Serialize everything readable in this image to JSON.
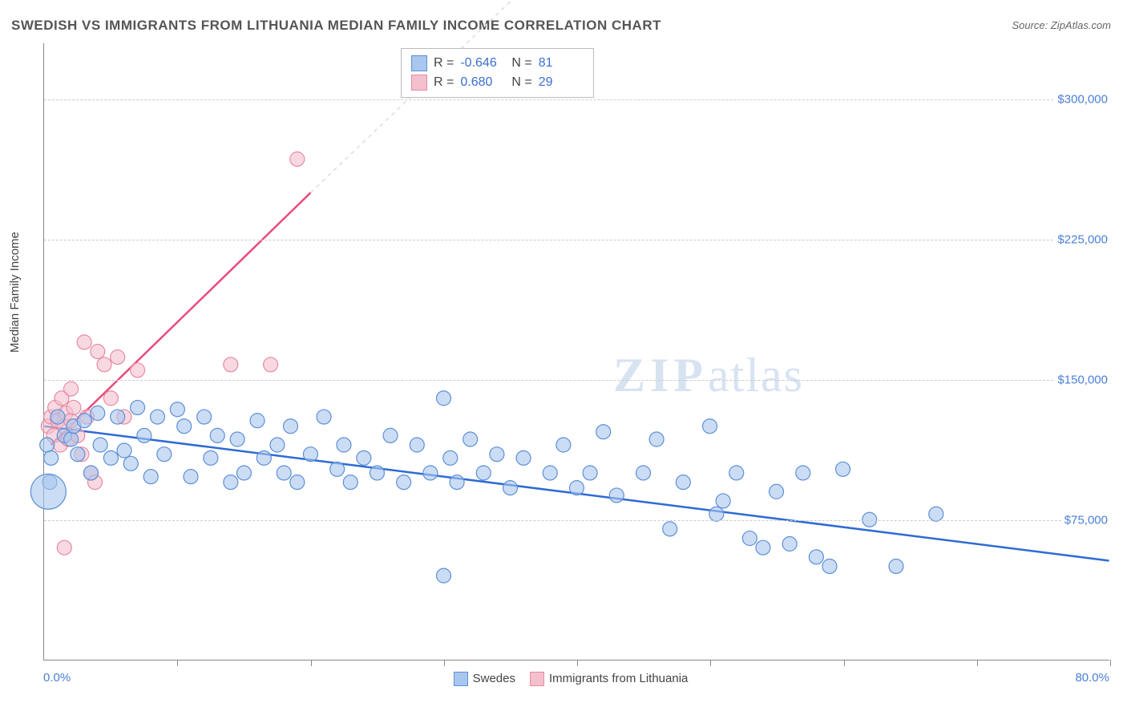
{
  "title": "SWEDISH VS IMMIGRANTS FROM LITHUANIA MEDIAN FAMILY INCOME CORRELATION CHART",
  "source": "Source: ZipAtlas.com",
  "ylabel": "Median Family Income",
  "watermark_zip": "ZIP",
  "watermark_rest": "atlas",
  "chart": {
    "type": "scatter",
    "background_color": "#ffffff",
    "grid_color": "#cccccc",
    "grid_dash": "4,4",
    "axis_color": "#888888",
    "xlim": [
      0,
      80
    ],
    "ylim": [
      0,
      330000
    ],
    "ytick_values": [
      75000,
      150000,
      225000,
      300000
    ],
    "ytick_labels": [
      "$75,000",
      "$150,000",
      "$225,000",
      "$300,000"
    ],
    "xtick_values": [
      10,
      20,
      30,
      40,
      50,
      60,
      70,
      80
    ],
    "x_min_label": "0.0%",
    "x_max_label": "80.0%",
    "tick_label_color": "#4a7fd8",
    "tick_label_fontsize": 15,
    "ylabel_fontsize": 15,
    "title_fontsize": 17,
    "title_color": "#555555"
  },
  "series": {
    "swedes": {
      "label": "Swedes",
      "fill_color": "#a9c7ee",
      "stroke_color": "#5d8fd6",
      "marker_radius": 9,
      "fill_opacity": 0.6,
      "trendline_color": "#2e6bd4",
      "trendline_width": 2.5,
      "trend_x1": 0,
      "trend_y1": 125000,
      "trend_x2": 80,
      "trend_y2": 53000,
      "R": "-0.646",
      "N": "81",
      "points": [
        [
          0.2,
          115000
        ],
        [
          0.4,
          95000
        ],
        [
          0.5,
          108000
        ],
        [
          1.0,
          130000
        ],
        [
          1.5,
          120000
        ],
        [
          2.0,
          118000
        ],
        [
          2.2,
          125000
        ],
        [
          2.5,
          110000
        ],
        [
          3.0,
          128000
        ],
        [
          3.5,
          100000
        ],
        [
          4.0,
          132000
        ],
        [
          4.2,
          115000
        ],
        [
          5.0,
          108000
        ],
        [
          5.5,
          130000
        ],
        [
          6.0,
          112000
        ],
        [
          6.5,
          105000
        ],
        [
          7.0,
          135000
        ],
        [
          7.5,
          120000
        ],
        [
          8.0,
          98000
        ],
        [
          8.5,
          130000
        ],
        [
          9.0,
          110000
        ],
        [
          10.0,
          134000
        ],
        [
          10.5,
          125000
        ],
        [
          11.0,
          98000
        ],
        [
          12.0,
          130000
        ],
        [
          12.5,
          108000
        ],
        [
          13.0,
          120000
        ],
        [
          14.0,
          95000
        ],
        [
          14.5,
          118000
        ],
        [
          15.0,
          100000
        ],
        [
          16.0,
          128000
        ],
        [
          16.5,
          108000
        ],
        [
          17.5,
          115000
        ],
        [
          18.0,
          100000
        ],
        [
          18.5,
          125000
        ],
        [
          19.0,
          95000
        ],
        [
          20.0,
          110000
        ],
        [
          21.0,
          130000
        ],
        [
          22.0,
          102000
        ],
        [
          22.5,
          115000
        ],
        [
          23.0,
          95000
        ],
        [
          24.0,
          108000
        ],
        [
          25.0,
          100000
        ],
        [
          26.0,
          120000
        ],
        [
          27.0,
          95000
        ],
        [
          28.0,
          115000
        ],
        [
          29.0,
          100000
        ],
        [
          30.0,
          140000
        ],
        [
          30.5,
          108000
        ],
        [
          30.0,
          45000
        ],
        [
          31.0,
          95000
        ],
        [
          32.0,
          118000
        ],
        [
          33.0,
          100000
        ],
        [
          34.0,
          110000
        ],
        [
          35.0,
          92000
        ],
        [
          36.0,
          108000
        ],
        [
          38.0,
          100000
        ],
        [
          39.0,
          115000
        ],
        [
          40.0,
          92000
        ],
        [
          41.0,
          100000
        ],
        [
          42.0,
          122000
        ],
        [
          43.0,
          88000
        ],
        [
          45.0,
          100000
        ],
        [
          46.0,
          118000
        ],
        [
          47.0,
          70000
        ],
        [
          48.0,
          95000
        ],
        [
          50.0,
          125000
        ],
        [
          51.0,
          85000
        ],
        [
          52.0,
          100000
        ],
        [
          53.0,
          65000
        ],
        [
          54.0,
          60000
        ],
        [
          55.0,
          90000
        ],
        [
          56.0,
          62000
        ],
        [
          57.0,
          100000
        ],
        [
          60.0,
          102000
        ],
        [
          62.0,
          75000
        ],
        [
          64.0,
          50000
        ],
        [
          67.0,
          78000
        ],
        [
          58.0,
          55000
        ],
        [
          59.0,
          50000
        ],
        [
          50.5,
          78000
        ]
      ],
      "big_point": {
        "x": 0.3,
        "y": 90000,
        "r": 22
      }
    },
    "lithuania": {
      "label": "Immigrants from Lithuania",
      "fill_color": "#f4c0cd",
      "stroke_color": "#e88aa3",
      "marker_radius": 9,
      "fill_opacity": 0.6,
      "trendline_color": "#e94b7c",
      "trendline_width": 2.5,
      "trendline_dash_color": "#ddd",
      "trend_x1": 0.5,
      "trend_y1": 115000,
      "trend_x2": 20,
      "trend_y2": 250000,
      "trend_dash_x2": 42,
      "trend_dash_y2": 400000,
      "R": "0.680",
      "N": "29",
      "points": [
        [
          0.3,
          125000
        ],
        [
          0.5,
          130000
        ],
        [
          0.7,
          120000
        ],
        [
          0.8,
          135000
        ],
        [
          1.0,
          128000
        ],
        [
          1.2,
          115000
        ],
        [
          1.3,
          140000
        ],
        [
          1.5,
          125000
        ],
        [
          1.6,
          132000
        ],
        [
          1.8,
          118000
        ],
        [
          2.0,
          145000
        ],
        [
          2.0,
          128000
        ],
        [
          2.2,
          135000
        ],
        [
          2.5,
          120000
        ],
        [
          2.8,
          110000
        ],
        [
          3.0,
          170000
        ],
        [
          3.2,
          130000
        ],
        [
          3.5,
          100000
        ],
        [
          3.8,
          95000
        ],
        [
          4.0,
          165000
        ],
        [
          4.5,
          158000
        ],
        [
          5.0,
          140000
        ],
        [
          5.5,
          162000
        ],
        [
          6.0,
          130000
        ],
        [
          7.0,
          155000
        ],
        [
          14.0,
          158000
        ],
        [
          17.0,
          158000
        ],
        [
          1.5,
          60000
        ],
        [
          19.0,
          268000
        ]
      ]
    }
  },
  "stats_box": {
    "rows": [
      {
        "swatch_fill": "#a9c7ee",
        "swatch_stroke": "#5d8fd6",
        "r_label": "R =",
        "r_val": "-0.646",
        "n_label": "N =",
        "n_val": "81"
      },
      {
        "swatch_fill": "#f4c0cd",
        "swatch_stroke": "#e88aa3",
        "r_label": "R =",
        "r_val": "0.680",
        "n_label": "N =",
        "n_val": "29"
      }
    ]
  }
}
